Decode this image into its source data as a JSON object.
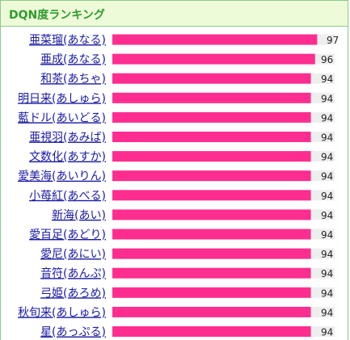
{
  "header": {
    "title": "DQN度ランキング"
  },
  "colors": {
    "bar": "#ff2d8f",
    "track": "#eeeeee",
    "border": "#8cc98c",
    "header_bg": "#eefbd8",
    "title": "#2f9b2f",
    "link": "#1a1aa6"
  },
  "chart_data": {
    "type": "bar",
    "orientation": "horizontal",
    "title": "DQN度ランキング",
    "xlim": [
      0,
      100
    ],
    "grid": false,
    "categories": [
      "亜菜瑠(あなる)",
      "亜成(あなる)",
      "和茶(あちゃ)",
      "明日来(あしゅら)",
      "藍ドル(あいどる)",
      "亜視羽(あみば)",
      "文数化(あすか)",
      "愛美海(あいりん)",
      "小苺紅(あべる)",
      "新海(あい)",
      "愛百足(あどり)",
      "愛尼(あにい)",
      "音符(あんぷ)",
      "弓姫(あろめ)",
      "秋旬来(あしゅら)",
      "星(あっぷる)"
    ],
    "values": [
      97,
      96,
      94,
      94,
      94,
      94,
      94,
      94,
      94,
      94,
      94,
      94,
      94,
      94,
      94,
      94
    ]
  }
}
